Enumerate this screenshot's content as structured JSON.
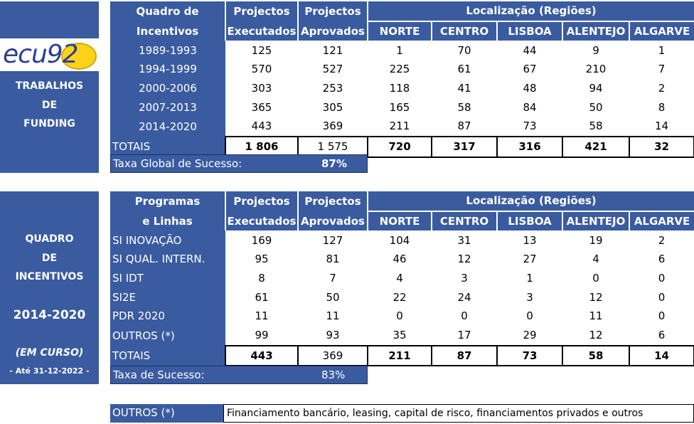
{
  "logo": {
    "text": "ecu92"
  },
  "section1": {
    "side_lines": [
      "TRABALHOS",
      "DE",
      "FUNDING"
    ],
    "headers": {
      "col1": [
        "Quadro de",
        "Incentivos"
      ],
      "col2": [
        "Projectos",
        "Executados"
      ],
      "col3": [
        "Projectos",
        "Aprovados"
      ],
      "region_group": "Localização (Regiões)",
      "regions": [
        "NORTE",
        "CENTRO",
        "LISBOA",
        "ALENTEJO",
        "ALGARVE"
      ]
    },
    "rows": [
      [
        "1989-1993",
        "125",
        "121",
        "1",
        "70",
        "44",
        "9",
        "1"
      ],
      [
        "1994-1999",
        "570",
        "527",
        "225",
        "61",
        "67",
        "210",
        "7"
      ],
      [
        "2000-2006",
        "303",
        "253",
        "118",
        "41",
        "48",
        "94",
        "2"
      ],
      [
        "2007-2013",
        "365",
        "305",
        "165",
        "58",
        "84",
        "50",
        "8"
      ],
      [
        "2014-2020",
        "443",
        "369",
        "211",
        "87",
        "73",
        "58",
        "14"
      ]
    ],
    "totals": [
      "TOTAIS",
      "1 806",
      "1 575",
      "720",
      "317",
      "316",
      "421",
      "32"
    ],
    "rate_label": "Taxa Global de Sucesso:",
    "rate_value": "87%"
  },
  "section2": {
    "side_lines": [
      "QUADRO",
      "DE",
      "INCENTIVOS",
      "2014-2020",
      "(EM CURSO)",
      "- Até 31-12-2022 -"
    ],
    "headers": {
      "col1": [
        "Programas",
        "e Linhas"
      ],
      "col2": [
        "Projectos",
        "Executados"
      ],
      "col3": [
        "Projectos",
        "Aprovados"
      ],
      "region_group": "Localização (Regiões)",
      "regions": [
        "NORTE",
        "CENTRO",
        "LISBOA",
        "ALENTEJO",
        "ALGARVE"
      ]
    },
    "rows": [
      [
        "SI INOVAÇÃO",
        "169",
        "127",
        "104",
        "31",
        "13",
        "19",
        "2"
      ],
      [
        "SI QUAL. INTERN.",
        "95",
        "81",
        "46",
        "12",
        "27",
        "4",
        "6"
      ],
      [
        "SI IDT",
        "8",
        "7",
        "4",
        "3",
        "1",
        "0",
        "0"
      ],
      [
        "SI2E",
        "61",
        "50",
        "22",
        "24",
        "3",
        "12",
        "0"
      ],
      [
        "PDR 2020",
        "11",
        "11",
        "0",
        "0",
        "0",
        "11",
        "0"
      ],
      [
        "OUTROS (*)",
        "99",
        "93",
        "35",
        "17",
        "29",
        "12",
        "6"
      ]
    ],
    "totals": [
      "TOTAIS",
      "443",
      "369",
      "211",
      "87",
      "73",
      "58",
      "14"
    ],
    "rate_label": "Taxa de Sucesso:",
    "rate_value": "83%"
  },
  "footnote": {
    "label": "OUTROS (*)",
    "text": "Financiamento bancário, leasing, capital de risco, financiamentos privados e outros"
  }
}
